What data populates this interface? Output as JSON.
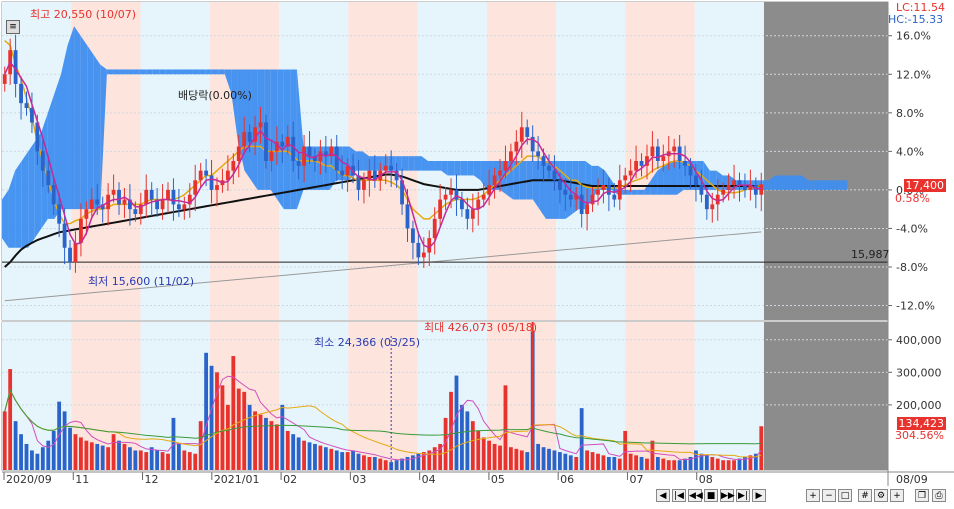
{
  "chart_data": [
    {
      "type": "candlestick",
      "panel": "price",
      "x_start": "2020/09",
      "x_end": "08/09",
      "month_labels": [
        "2020/09",
        "11",
        "12",
        "2021/01",
        "02",
        "03",
        "04",
        "05",
        "06",
        "07",
        "08"
      ],
      "right_axis_label": "08/09",
      "ylabels": [
        "16.0%",
        "12.0%",
        "8.0%",
        "4.0%",
        "0.0%",
        "-4.0%",
        "-8.0%",
        "-12.0%"
      ],
      "ylim_percent": [
        -13.5,
        19.5
      ],
      "overlays": [
        "ichimoku-cloud",
        "moving-averages",
        "horizontal-line"
      ],
      "hud": {
        "lc": "LC:11.54",
        "hc": "HC:-15.33"
      },
      "annotations": {
        "high": "최고 20,550 (10/07)",
        "low": "최저 15,600 (11/02)",
        "dividend": "배당락(0.00%)",
        "level_line": "15,987"
      },
      "current": {
        "price": "17,400",
        "change": "0.58%",
        "price_color": "#e8322e"
      },
      "close_percent": [
        12,
        14.5,
        11,
        9,
        8.5,
        7,
        4,
        2,
        0.5,
        -1.5,
        -3.5,
        -6,
        -7.5,
        -5.5,
        -3,
        -2,
        -1,
        -1.5,
        -2,
        -0.5,
        0,
        -1.5,
        -1,
        -2,
        -2.5,
        -1.5,
        0,
        -1,
        -2,
        -1,
        0,
        -1.5,
        -2,
        -1.5,
        -0.5,
        1,
        2,
        1.5,
        0,
        0.5,
        1,
        2,
        3,
        4.5,
        6,
        5,
        6.5,
        7,
        3,
        4,
        5,
        4.5,
        5.5,
        3,
        2.5,
        4.5,
        3.5,
        3,
        4,
        3.5,
        4.5,
        2,
        1.5,
        2.5,
        1.5,
        0,
        1,
        2,
        1,
        2,
        2.5,
        2,
        1,
        -1.5,
        -4,
        -5.5,
        -7,
        -6.5,
        -5,
        -3,
        -1,
        -0.5,
        0,
        -1,
        -2,
        -3,
        -2,
        -1,
        -0.5,
        0.5,
        1.5,
        2,
        3,
        4,
        5,
        6.5,
        5.5,
        4,
        3.5,
        2.5,
        2,
        1,
        0,
        -0.5,
        -1,
        -0.5,
        -2.5,
        -1.5,
        -0.5,
        0,
        0.5,
        -0.5,
        -1,
        1,
        1.5,
        2,
        3,
        2.5,
        3.5,
        4.5,
        3,
        3.5,
        4,
        4.5,
        3,
        2.5,
        1.5,
        0.5,
        -0.5,
        -2,
        -1.5,
        -0.5,
        0,
        0.5,
        1,
        0.5,
        0,
        0.5,
        -0.5,
        0.58
      ],
      "ma_percent": [
        15.5,
        15,
        13,
        11.5,
        9.5,
        7.5,
        5,
        3,
        1,
        -1,
        -2.5,
        -3.5,
        -3.5,
        -3.2,
        -3,
        -2.5,
        -2.2,
        -2,
        -2,
        -1.8,
        -1.5,
        -1.5,
        -1.5,
        -1.5,
        -1.5,
        -1.5,
        -1.2,
        -1,
        -1,
        -1,
        -1,
        -1,
        -0.8,
        -0.5,
        0,
        0.5,
        1,
        1.5,
        1.5,
        2,
        2.5,
        3,
        3.5,
        4,
        4.5,
        4.5,
        4.5,
        4.5,
        4,
        4,
        4,
        4,
        4,
        3.5,
        3,
        3,
        3,
        3,
        2.8,
        2.5,
        2.5,
        2,
        1.5,
        1.5,
        1.2,
        1,
        1,
        1,
        1,
        1,
        1,
        0.8,
        0.5,
        0,
        -1,
        -2,
        -2.5,
        -3,
        -3,
        -2.5,
        -2,
        -1.5,
        -1.2,
        -1,
        -1,
        -1,
        -1,
        -0.8,
        -0.5,
        0,
        0.5,
        1,
        1.5,
        2,
        2.5,
        3,
        3.5,
        3.5,
        3.5,
        3,
        2.8,
        2.5,
        2,
        1.5,
        1,
        1,
        0.5,
        0.3,
        0.2,
        0.2,
        0.3,
        0.2,
        0.2,
        0.3,
        0.5,
        0.8,
        1,
        1.2,
        1.5,
        2,
        2.3,
        2.5,
        2.8,
        3,
        3,
        2.8,
        2.5,
        2,
        1.5,
        1,
        0.5,
        0,
        -0.2,
        -0.3,
        -0.3,
        -0.2,
        0,
        0.2,
        0.3,
        0.5
      ],
      "long_ma_percent": [
        -8,
        -7.5,
        -6.8,
        -6.2,
        -5.8,
        -5.5,
        -5.2,
        -5,
        -4.8,
        -4.6,
        -4.4,
        -4.3,
        -4.2,
        -4.1,
        -4,
        -3.9,
        -3.8,
        -3.7,
        -3.6,
        -3.5,
        -3.4,
        -3.3,
        -3.2,
        -3.1,
        -3,
        -2.9,
        -2.8,
        -2.7,
        -2.6,
        -2.5,
        -2.4,
        -2.3,
        -2.2,
        -2.1,
        -2,
        -1.9,
        -1.8,
        -1.7,
        -1.6,
        -1.5,
        -1.4,
        -1.3,
        -1.2,
        -1.1,
        -1,
        -0.9,
        -0.8,
        -0.7,
        -0.6,
        -0.5,
        -0.4,
        -0.3,
        -0.2,
        -0.1,
        0,
        0.1,
        0.2,
        0.3,
        0.4,
        0.5,
        0.6,
        0.7,
        0.8,
        0.9,
        1,
        1.1,
        1.2,
        1.3,
        1.4,
        1.5,
        1.6,
        1.6,
        1.5,
        1.4,
        1.2,
        1,
        0.8,
        0.6,
        0.5,
        0.4,
        0.3,
        0.2,
        0.1,
        0,
        0,
        0,
        0,
        0,
        0.1,
        0.2,
        0.3,
        0.4,
        0.5,
        0.6,
        0.7,
        0.8,
        0.9,
        1,
        1,
        1,
        1,
        1,
        1,
        0.9,
        0.8,
        0.7,
        0.6,
        0.5,
        0.4,
        0.4,
        0.4,
        0.4,
        0.4,
        0.4,
        0.4,
        0.4,
        0.4,
        0.4,
        0.4,
        0.4,
        0.4,
        0.4,
        0.4,
        0.4,
        0.4,
        0.4,
        0.4,
        0.4,
        0.4,
        0.4,
        0.4,
        0.4,
        0.4,
        0.4,
        0.4,
        0.4,
        0.4,
        0.4,
        0.4,
        0.4
      ],
      "cloud_percent": [
        [
          -1,
          -5
        ],
        [
          0,
          -6
        ],
        [
          2,
          -6
        ],
        [
          3,
          -6
        ],
        [
          4,
          -6
        ],
        [
          5,
          -5
        ],
        [
          6,
          -4
        ],
        [
          8,
          -3
        ],
        [
          10,
          -3
        ],
        [
          12,
          -2
        ],
        [
          15,
          -2
        ],
        [
          17,
          -2
        ],
        [
          16,
          -2
        ],
        [
          15,
          -2
        ],
        [
          14,
          -2
        ],
        [
          13,
          -2
        ],
        [
          12.5,
          12
        ],
        [
          12.5,
          12
        ],
        [
          12.5,
          12
        ],
        [
          12.5,
          12
        ],
        [
          12.5,
          12
        ],
        [
          12.5,
          12
        ],
        [
          12.5,
          12
        ],
        [
          12.5,
          12
        ],
        [
          12.5,
          12
        ],
        [
          12.5,
          12
        ],
        [
          12.5,
          12
        ],
        [
          12.5,
          12
        ],
        [
          12.5,
          12
        ],
        [
          12.5,
          12
        ],
        [
          12.5,
          12
        ],
        [
          12.5,
          12
        ],
        [
          12.5,
          12
        ],
        [
          12.5,
          12
        ],
        [
          12.5,
          12
        ],
        [
          12.5,
          10
        ],
        [
          12.5,
          5
        ],
        [
          12.5,
          2
        ],
        [
          12.5,
          1
        ],
        [
          12.5,
          0
        ],
        [
          12.5,
          0
        ],
        [
          12.5,
          0
        ],
        [
          12.5,
          -1
        ],
        [
          12.5,
          -2
        ],
        [
          12.5,
          -2
        ],
        [
          12.5,
          -2
        ],
        [
          4.5,
          0
        ],
        [
          4.5,
          0
        ],
        [
          4.5,
          0
        ],
        [
          4.5,
          0
        ],
        [
          4.5,
          0
        ],
        [
          4.5,
          1
        ],
        [
          4.5,
          1
        ],
        [
          4.5,
          1
        ],
        [
          4,
          2
        ],
        [
          4,
          2
        ],
        [
          3.5,
          2
        ],
        [
          3.5,
          2
        ],
        [
          3.5,
          2
        ],
        [
          3.5,
          2
        ],
        [
          3.5,
          2
        ],
        [
          3.5,
          2
        ],
        [
          3.5,
          2
        ],
        [
          3.5,
          2
        ],
        [
          3.5,
          2
        ],
        [
          3,
          2
        ],
        [
          3,
          2
        ],
        [
          3,
          2
        ],
        [
          3,
          1.5
        ],
        [
          3,
          1.5
        ],
        [
          3,
          1.5
        ],
        [
          3,
          1.5
        ],
        [
          3,
          1.5
        ],
        [
          3,
          1
        ],
        [
          3,
          0
        ],
        [
          3,
          0
        ],
        [
          3,
          0
        ],
        [
          3,
          -0.5
        ],
        [
          3,
          -1
        ],
        [
          3,
          -1
        ],
        [
          3,
          -1
        ],
        [
          3,
          -1
        ],
        [
          3,
          -2
        ],
        [
          3,
          -3
        ],
        [
          3,
          -3
        ],
        [
          3,
          -3
        ],
        [
          3,
          -3
        ],
        [
          3,
          -2.5
        ],
        [
          3,
          -2
        ],
        [
          3,
          -2
        ],
        [
          2.5,
          -1
        ],
        [
          2.5,
          0
        ],
        [
          2,
          0
        ],
        [
          1,
          0
        ],
        [
          0,
          -0.5
        ],
        [
          0,
          -0.5
        ],
        [
          0,
          -0.5
        ],
        [
          0,
          -0.5
        ],
        [
          0,
          -0.5
        ],
        [
          1,
          -0.5
        ],
        [
          2,
          -0.5
        ],
        [
          2.5,
          -0.5
        ],
        [
          3,
          -0.5
        ],
        [
          3,
          -0.5
        ],
        [
          3,
          0
        ],
        [
          3,
          0
        ],
        [
          3,
          0
        ],
        [
          3,
          0
        ],
        [
          2,
          0
        ],
        [
          2,
          0
        ],
        [
          1.5,
          0
        ],
        [
          1.5,
          0
        ],
        [
          1,
          0
        ],
        [
          1,
          0
        ],
        [
          1,
          0
        ],
        [
          1,
          0
        ],
        [
          1,
          0
        ],
        [
          1,
          0
        ],
        [
          1.5,
          0
        ],
        [
          1.5,
          0
        ],
        [
          1.5,
          0
        ],
        [
          1.5,
          0
        ],
        [
          1.5,
          0
        ],
        [
          1,
          0
        ],
        [
          1,
          0
        ],
        [
          1,
          0
        ],
        [
          1,
          0
        ],
        [
          1,
          0
        ],
        [
          1,
          0
        ],
        [
          1,
          0
        ]
      ]
    },
    {
      "type": "bar",
      "panel": "volume",
      "ylabels": [
        "400,000",
        "300,000",
        "200,000"
      ],
      "ylim": [
        0,
        430000
      ],
      "annotations": {
        "min": "최소 24,366 (03/25)",
        "max": "최대 426,073 (05/18)"
      },
      "current": {
        "value": "134,423",
        "ratio": "304.56%"
      },
      "values": [
        180000,
        310000,
        150000,
        110000,
        80000,
        60000,
        50000,
        70000,
        90000,
        120000,
        210000,
        180000,
        130000,
        110000,
        100000,
        90000,
        85000,
        80000,
        75000,
        70000,
        110000,
        90000,
        80000,
        70000,
        60000,
        60000,
        55000,
        70000,
        60000,
        55000,
        50000,
        160000,
        80000,
        60000,
        55000,
        50000,
        150000,
        360000,
        320000,
        300000,
        260000,
        200000,
        350000,
        250000,
        240000,
        200000,
        180000,
        170000,
        160000,
        150000,
        140000,
        200000,
        120000,
        110000,
        100000,
        90000,
        85000,
        80000,
        75000,
        70000,
        65000,
        60000,
        55000,
        55000,
        60000,
        50000,
        45000,
        40000,
        40000,
        35000,
        30000,
        24366,
        30000,
        35000,
        40000,
        45000,
        50000,
        55000,
        60000,
        70000,
        80000,
        160000,
        240000,
        290000,
        200000,
        180000,
        150000,
        120000,
        100000,
        90000,
        80000,
        75000,
        260000,
        70000,
        65000,
        60000,
        55000,
        426073,
        80000,
        70000,
        65000,
        60000,
        55000,
        50000,
        45000,
        40000,
        190000,
        60000,
        55000,
        50000,
        45000,
        40000,
        40000,
        35000,
        120000,
        50000,
        45000,
        40000,
        35000,
        90000,
        40000,
        35000,
        30000,
        30000,
        30000,
        35000,
        40000,
        60000,
        50000,
        45000,
        40000,
        35000,
        30000,
        30000,
        30000,
        35000,
        40000,
        45000,
        50000,
        134423
      ]
    }
  ],
  "toolbar": {
    "buttons": [
      "◀",
      "|◀",
      "◀◀",
      "■",
      "▶▶",
      "▶|",
      "▶"
    ]
  }
}
